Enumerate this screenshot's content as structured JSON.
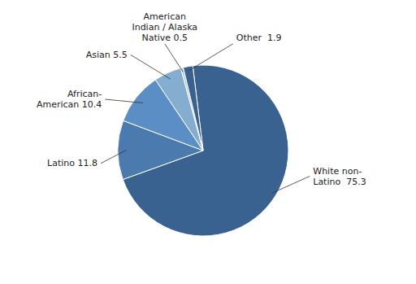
{
  "chart_data": {
    "type": "pie",
    "categories": [
      "White non-\nLatino  75.3",
      "Latino 11.8",
      "African-\nAmerican 10.4",
      "Asian 5.5",
      "American\nIndian / Alaska\nNative 0.5",
      "Other  1.9"
    ],
    "values": [
      75.3,
      11.8,
      10.4,
      5.5,
      0.5,
      1.9
    ],
    "colors": [
      "#3A6291",
      "#4A7AAE",
      "#5B8EC4",
      "#85ADD0",
      "#B8CCE4",
      "#3A6291"
    ]
  }
}
